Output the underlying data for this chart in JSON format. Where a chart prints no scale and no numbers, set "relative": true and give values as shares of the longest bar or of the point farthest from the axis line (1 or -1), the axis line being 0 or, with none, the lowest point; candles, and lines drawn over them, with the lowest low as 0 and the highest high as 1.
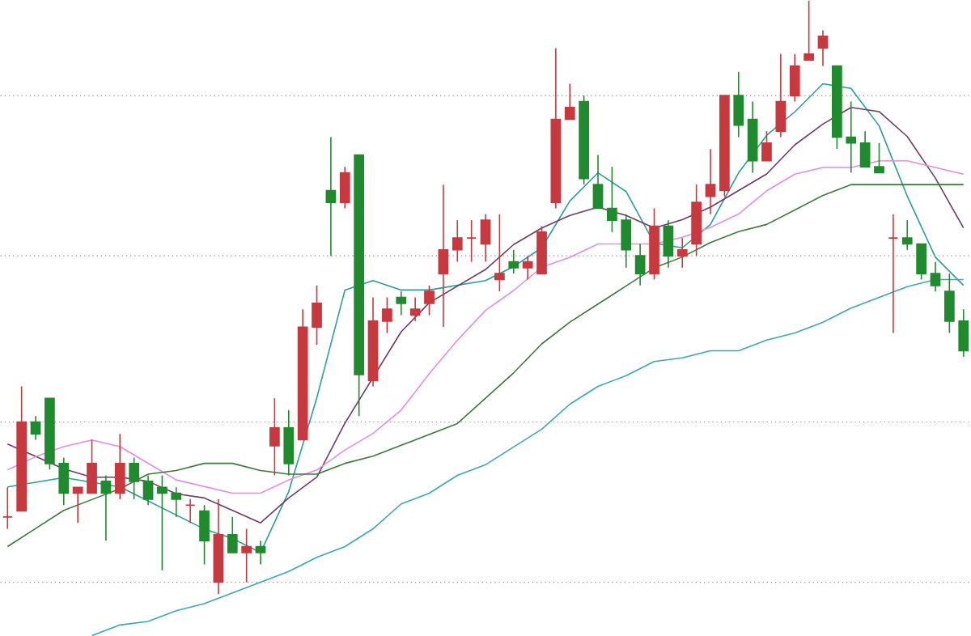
{
  "chart_data": [
    {
      "type": "candlestick",
      "relative": true,
      "categories": [
        null,
        null,
        null,
        null,
        null,
        null,
        null,
        null,
        null,
        null,
        null,
        null,
        null,
        null,
        null,
        null,
        null,
        null,
        null,
        null,
        null,
        null,
        null,
        null,
        null,
        null,
        null,
        null,
        null,
        null,
        null,
        null,
        null,
        null,
        null,
        null,
        null,
        null,
        null,
        null,
        null,
        null,
        null,
        null,
        null,
        null,
        null,
        null,
        null,
        null,
        null,
        null,
        null,
        null,
        null,
        null,
        null,
        null,
        null,
        null,
        null,
        null,
        null,
        null,
        null,
        null,
        null,
        null,
        null
      ],
      "ohlc": [
        [
          0.13,
          0.18,
          0.11,
          0.13
        ],
        [
          0.14,
          0.35,
          0.14,
          0.29
        ],
        [
          0.29,
          0.3,
          0.26,
          0.27
        ],
        [
          0.33,
          0.33,
          0.21,
          0.22
        ],
        [
          0.22,
          0.23,
          0.15,
          0.17
        ],
        [
          0.17,
          0.18,
          0.12,
          0.18
        ],
        [
          0.17,
          0.26,
          0.17,
          0.22
        ],
        [
          0.19,
          0.2,
          0.09,
          0.17
        ],
        [
          0.17,
          0.27,
          0.16,
          0.22
        ],
        [
          0.22,
          0.23,
          0.16,
          0.19
        ],
        [
          0.19,
          0.2,
          0.15,
          0.16
        ],
        [
          0.18,
          0.2,
          0.04,
          0.17
        ],
        [
          0.17,
          0.18,
          0.13,
          0.16
        ],
        [
          0.15,
          0.16,
          0.12,
          0.15
        ],
        [
          0.14,
          0.15,
          0.05,
          0.09
        ],
        [
          0.02,
          0.16,
          0.0,
          0.1
        ],
        [
          0.1,
          0.13,
          0.07,
          0.07
        ],
        [
          0.07,
          0.11,
          0.02,
          0.08
        ],
        [
          0.08,
          0.09,
          0.05,
          0.07
        ],
        [
          0.25,
          0.33,
          0.2,
          0.28
        ],
        [
          0.28,
          0.31,
          0.2,
          0.22
        ],
        [
          0.26,
          0.48,
          0.26,
          0.45
        ],
        [
          0.45,
          0.52,
          0.42,
          0.49
        ],
        [
          0.68,
          0.77,
          0.57,
          0.66
        ],
        [
          0.66,
          0.72,
          0.65,
          0.71
        ],
        [
          0.74,
          0.74,
          0.3,
          0.37
        ],
        [
          0.36,
          0.5,
          0.35,
          0.46
        ],
        [
          0.46,
          0.5,
          0.44,
          0.48
        ],
        [
          0.5,
          0.51,
          0.47,
          0.49
        ],
        [
          0.47,
          0.5,
          0.46,
          0.48
        ],
        [
          0.49,
          0.52,
          0.47,
          0.51
        ],
        [
          0.54,
          0.69,
          0.45,
          0.58
        ],
        [
          0.58,
          0.63,
          0.56,
          0.6
        ],
        [
          0.6,
          0.63,
          0.56,
          0.6
        ],
        [
          0.59,
          0.64,
          0.56,
          0.63
        ],
        [
          0.53,
          0.64,
          0.51,
          0.54
        ],
        [
          0.56,
          0.58,
          0.54,
          0.55
        ],
        [
          0.55,
          0.57,
          0.53,
          0.56
        ],
        [
          0.54,
          0.62,
          0.54,
          0.61
        ],
        [
          0.66,
          0.92,
          0.65,
          0.8
        ],
        [
          0.8,
          0.86,
          0.8,
          0.82
        ],
        [
          0.83,
          0.84,
          0.69,
          0.7
        ],
        [
          0.69,
          0.74,
          0.65,
          0.65
        ],
        [
          0.65,
          0.72,
          0.61,
          0.63
        ],
        [
          0.63,
          0.64,
          0.55,
          0.58
        ],
        [
          0.57,
          0.59,
          0.52,
          0.54
        ],
        [
          0.54,
          0.65,
          0.53,
          0.62
        ],
        [
          0.62,
          0.63,
          0.55,
          0.57
        ],
        [
          0.57,
          0.6,
          0.55,
          0.58
        ],
        [
          0.59,
          0.69,
          0.57,
          0.66
        ],
        [
          0.67,
          0.75,
          0.64,
          0.69
        ],
        [
          0.68,
          0.84,
          0.67,
          0.84
        ],
        [
          0.84,
          0.88,
          0.77,
          0.79
        ],
        [
          0.8,
          0.83,
          0.71,
          0.73
        ],
        [
          0.73,
          0.78,
          0.73,
          0.76
        ],
        [
          0.78,
          0.91,
          0.77,
          0.83
        ],
        [
          0.84,
          0.91,
          0.83,
          0.89
        ],
        [
          0.9,
          1.0,
          0.9,
          0.91
        ],
        [
          0.92,
          0.95,
          0.89,
          0.94
        ],
        [
          0.89,
          0.89,
          0.75,
          0.77
        ],
        [
          0.77,
          0.83,
          0.71,
          0.76
        ],
        [
          0.76,
          0.78,
          0.72,
          0.72
        ],
        [
          0.72,
          0.76,
          0.71,
          0.71
        ],
        [
          0.6,
          0.64,
          0.44,
          0.6
        ],
        [
          0.6,
          0.63,
          0.58,
          0.59
        ],
        [
          0.59,
          0.59,
          0.53,
          0.54
        ],
        [
          0.54,
          0.56,
          0.51,
          0.52
        ],
        [
          0.51,
          0.54,
          0.44,
          0.46
        ],
        [
          0.46,
          0.48,
          0.4,
          0.41
        ]
      ],
      "ref_lines": [
        {
          "axis": "y",
          "value": 0.84,
          "color": "#888888",
          "line_style": "dotted"
        },
        {
          "axis": "y",
          "value": 0.57,
          "color": "#888888",
          "line_style": "dotted"
        },
        {
          "axis": "y",
          "value": 0.29,
          "color": "#888888",
          "line_style": "dotted"
        },
        {
          "axis": "y",
          "value": 0.02,
          "color": "#888888",
          "line_style": "dotted"
        }
      ]
    },
    {
      "type": "line",
      "relative": true,
      "color": "#2a9d9a",
      "categories": [
        null,
        null,
        null,
        null,
        null,
        null,
        null,
        null,
        null,
        null,
        null,
        null,
        null,
        null,
        null,
        null,
        null,
        null,
        null,
        null,
        null,
        null,
        null,
        null,
        null,
        null,
        null,
        null,
        null,
        null,
        null,
        null,
        null,
        null,
        null
      ],
      "values": [
        0.14,
        0.15,
        0.16,
        0.15,
        0.14,
        0.11,
        0.08,
        0.05,
        0.03,
        0,
        0.13,
        0.33,
        0.56,
        0.58,
        0.56,
        0.56,
        0.57,
        0.58,
        0.61,
        0.65,
        0.75,
        0.81,
        0.77,
        0.66,
        0.65,
        0.7,
        0.81,
        0.89,
        0.94,
        1,
        0.99,
        0.91,
        0.76,
        0.63,
        0.57
      ]
    },
    {
      "type": "line",
      "relative": true,
      "color": "#6e3a66",
      "categories": [
        null,
        null,
        null,
        null,
        null,
        null,
        null,
        null,
        null,
        null,
        null,
        null,
        null,
        null,
        null,
        null,
        null,
        null,
        null,
        null,
        null,
        null,
        null,
        null,
        null,
        null,
        null,
        null,
        null,
        null,
        null,
        null,
        null,
        null,
        null
      ],
      "values": [
        0.19,
        0.16,
        0.13,
        0.11,
        0.11,
        0.1,
        0.07,
        0.06,
        0.03,
        0,
        0.06,
        0.11,
        0.24,
        null,
        0.46,
        0.53,
        0.57,
        0.61,
        0.67,
        0.71,
        0.74,
        0.76,
        0.74,
        0.71,
        0.73,
        0.76,
        0.8,
        0.84,
        0.91,
        0.96,
        1,
        0.99,
        0.93,
        0.83,
        0.71
      ]
    },
    {
      "type": "line",
      "relative": true,
      "color": "#e58ce0",
      "categories": [
        null,
        null,
        null,
        null,
        null,
        null,
        null,
        null,
        null,
        null,
        null,
        null,
        null,
        null,
        null,
        null,
        null,
        null,
        null,
        null,
        null,
        null,
        null,
        null,
        null,
        null,
        null,
        null,
        null,
        null,
        null,
        null,
        null,
        null,
        null
      ],
      "values": [
        0.07,
        0.11,
        0.14,
        0.16,
        0.14,
        0.09,
        0.04,
        0.02,
        0,
        0,
        0.04,
        0.07,
        0.13,
        0.18,
        0.25,
        0.36,
        0.46,
        0.55,
        0.61,
        0.68,
        0.71,
        0.75,
        0.75,
        0.75,
        0.77,
        0.8,
        0.84,
        0.91,
        0.96,
        0.98,
        0.98,
        1,
        1,
        0.98,
        0.96
      ]
    },
    {
      "type": "line",
      "relative": true,
      "color": "#3a7a3a",
      "categories": [
        null,
        null,
        null,
        null,
        null,
        null,
        null,
        null,
        null,
        null,
        null,
        null,
        null,
        null,
        null,
        null,
        null,
        null,
        null,
        null,
        null,
        null,
        null,
        null,
        null,
        null,
        null,
        null,
        null,
        null,
        null,
        null,
        null,
        null,
        null
      ],
      "values": [
        0,
        0.05,
        0.1,
        0.13,
        0.16,
        0.2,
        0.21,
        0.23,
        0.23,
        0.21,
        0.2,
        0.2,
        0.23,
        0.25,
        0.28,
        0.31,
        0.34,
        0.41,
        0.48,
        0.56,
        0.62,
        0.67,
        0.72,
        0.77,
        0.8,
        0.84,
        0.87,
        0.89,
        0.93,
        0.97,
        1,
        1,
        1,
        1,
        1
      ]
    },
    {
      "type": "line",
      "relative": true,
      "color": "#3aa8b0",
      "categories": [
        null,
        null,
        null,
        null,
        null,
        null,
        null,
        null,
        null,
        null,
        null,
        null,
        null,
        null,
        null,
        null,
        null,
        null,
        null,
        null,
        null,
        null,
        null,
        null,
        null,
        null,
        null,
        null,
        null,
        null,
        null,
        null
      ],
      "values": [
        0,
        0.03,
        0.04,
        0.07,
        0.09,
        0.12,
        0.15,
        0.18,
        0.22,
        0.25,
        0.3,
        0.37,
        0.4,
        0.45,
        0.48,
        0.53,
        0.58,
        0.65,
        0.7,
        0.73,
        0.77,
        0.78,
        0.8,
        0.8,
        0.83,
        0.85,
        0.88,
        0.92,
        0.95,
        0.98,
        1,
        1
      ]
    }
  ]
}
